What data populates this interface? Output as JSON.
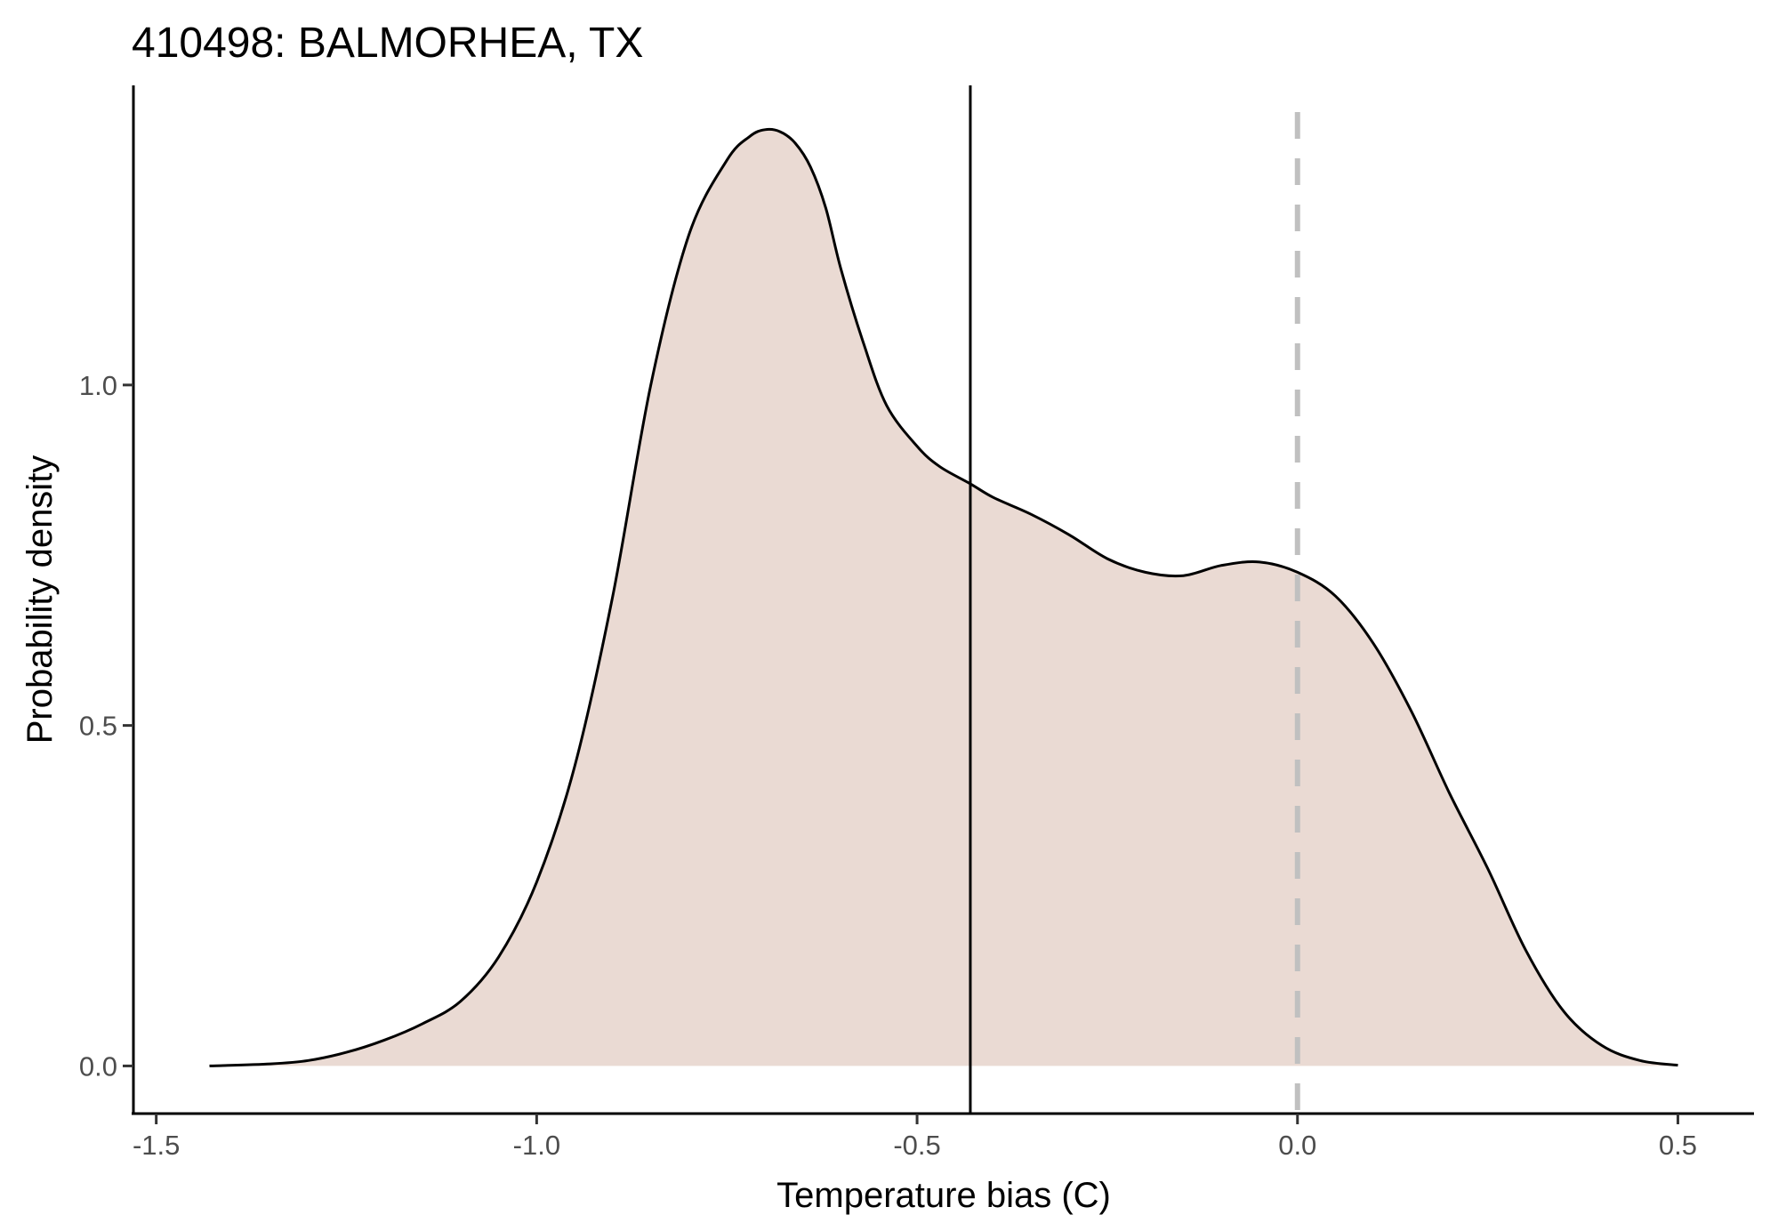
{
  "chart_data": {
    "type": "area",
    "title": "410498: BALMORHEA, TX",
    "xlabel": "Temperature bias (C)",
    "ylabel": "Probability density",
    "xlim": [
      -1.53,
      0.6
    ],
    "ylim": [
      -0.07,
      1.44
    ],
    "x_ticks": [
      -1.5,
      -1.0,
      -0.5,
      0.0,
      0.5
    ],
    "x_tick_labels": [
      "-1.5",
      "-1.0",
      "-0.5",
      "0.0",
      "0.5"
    ],
    "y_ticks": [
      0.0,
      0.5,
      1.0
    ],
    "y_tick_labels": [
      "0.0",
      "0.5",
      "1.0"
    ],
    "grid": false,
    "fill_color": "#eadad3",
    "line_color": "#000000",
    "reference_lines": [
      {
        "x": -0.43,
        "style": "solid",
        "color": "#000000"
      },
      {
        "x": 0.0,
        "style": "dashed",
        "color": "#c0c0c0"
      }
    ],
    "series": [
      {
        "x": [
          -1.43,
          -1.35,
          -1.3,
          -1.25,
          -1.2,
          -1.15,
          -1.1,
          -1.05,
          -1.0,
          -0.95,
          -0.9,
          -0.85,
          -0.8,
          -0.75,
          -0.72,
          -0.7,
          -0.68,
          -0.66,
          -0.64,
          -0.62,
          -0.6,
          -0.57,
          -0.54,
          -0.5,
          -0.47,
          -0.43,
          -0.4,
          -0.35,
          -0.3,
          -0.25,
          -0.2,
          -0.15,
          -0.1,
          -0.05,
          0.0,
          0.05,
          0.1,
          0.15,
          0.2,
          0.25,
          0.3,
          0.35,
          0.4,
          0.45,
          0.5
        ],
        "y": [
          0.0,
          0.003,
          0.008,
          0.02,
          0.038,
          0.062,
          0.095,
          0.16,
          0.27,
          0.44,
          0.69,
          1.0,
          1.22,
          1.33,
          1.365,
          1.375,
          1.372,
          1.355,
          1.32,
          1.26,
          1.17,
          1.06,
          0.97,
          0.91,
          0.88,
          0.855,
          0.835,
          0.81,
          0.78,
          0.745,
          0.725,
          0.72,
          0.735,
          0.74,
          0.725,
          0.69,
          0.62,
          0.52,
          0.4,
          0.29,
          0.17,
          0.08,
          0.03,
          0.008,
          0.001
        ]
      }
    ]
  }
}
